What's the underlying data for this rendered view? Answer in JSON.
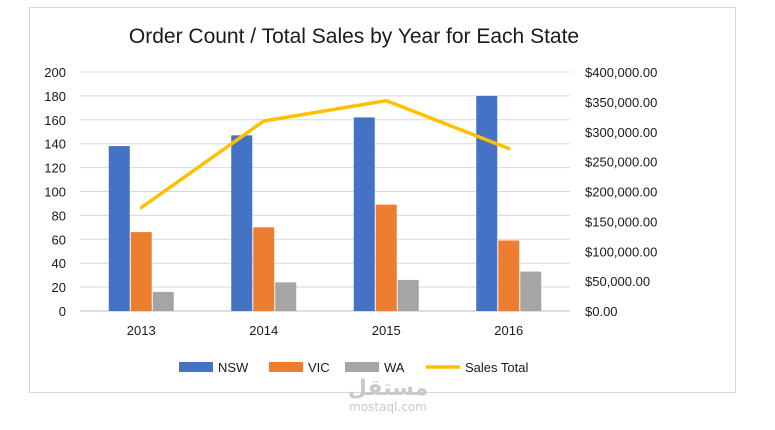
{
  "chart_data": {
    "type": "bar",
    "title": "Order Count / Total Sales by Year for Each State",
    "categories": [
      "2013",
      "2014",
      "2015",
      "2016"
    ],
    "series": [
      {
        "name": "NSW",
        "type": "bar",
        "axis": "left",
        "color": "#4472c4",
        "values": [
          138,
          147,
          162,
          180
        ]
      },
      {
        "name": "VIC",
        "type": "bar",
        "axis": "left",
        "color": "#ed7d31",
        "values": [
          66,
          70,
          89,
          59
        ]
      },
      {
        "name": "WA",
        "type": "bar",
        "axis": "left",
        "color": "#a5a5a5",
        "values": [
          16,
          24,
          26,
          33
        ]
      },
      {
        "name": "Sales Total",
        "type": "line",
        "axis": "right",
        "color": "#ffc000",
        "values": [
          173000,
          318000,
          352000,
          272000
        ]
      }
    ],
    "y_left": {
      "range": [
        0,
        200
      ],
      "ticks": [
        "0",
        "20",
        "40",
        "60",
        "80",
        "100",
        "120",
        "140",
        "160",
        "180",
        "200"
      ]
    },
    "y_right": {
      "range": [
        0,
        400000
      ],
      "ticks": [
        "$0.00",
        "$50,000.00",
        "$100,000.00",
        "$150,000.00",
        "$200,000.00",
        "$250,000.00",
        "$300,000.00",
        "$350,000.00",
        "$400,000.00"
      ]
    },
    "grid": true,
    "legend": "bottom"
  },
  "watermark": {
    "logo": "مستقل",
    "text": "mostaql.com"
  }
}
